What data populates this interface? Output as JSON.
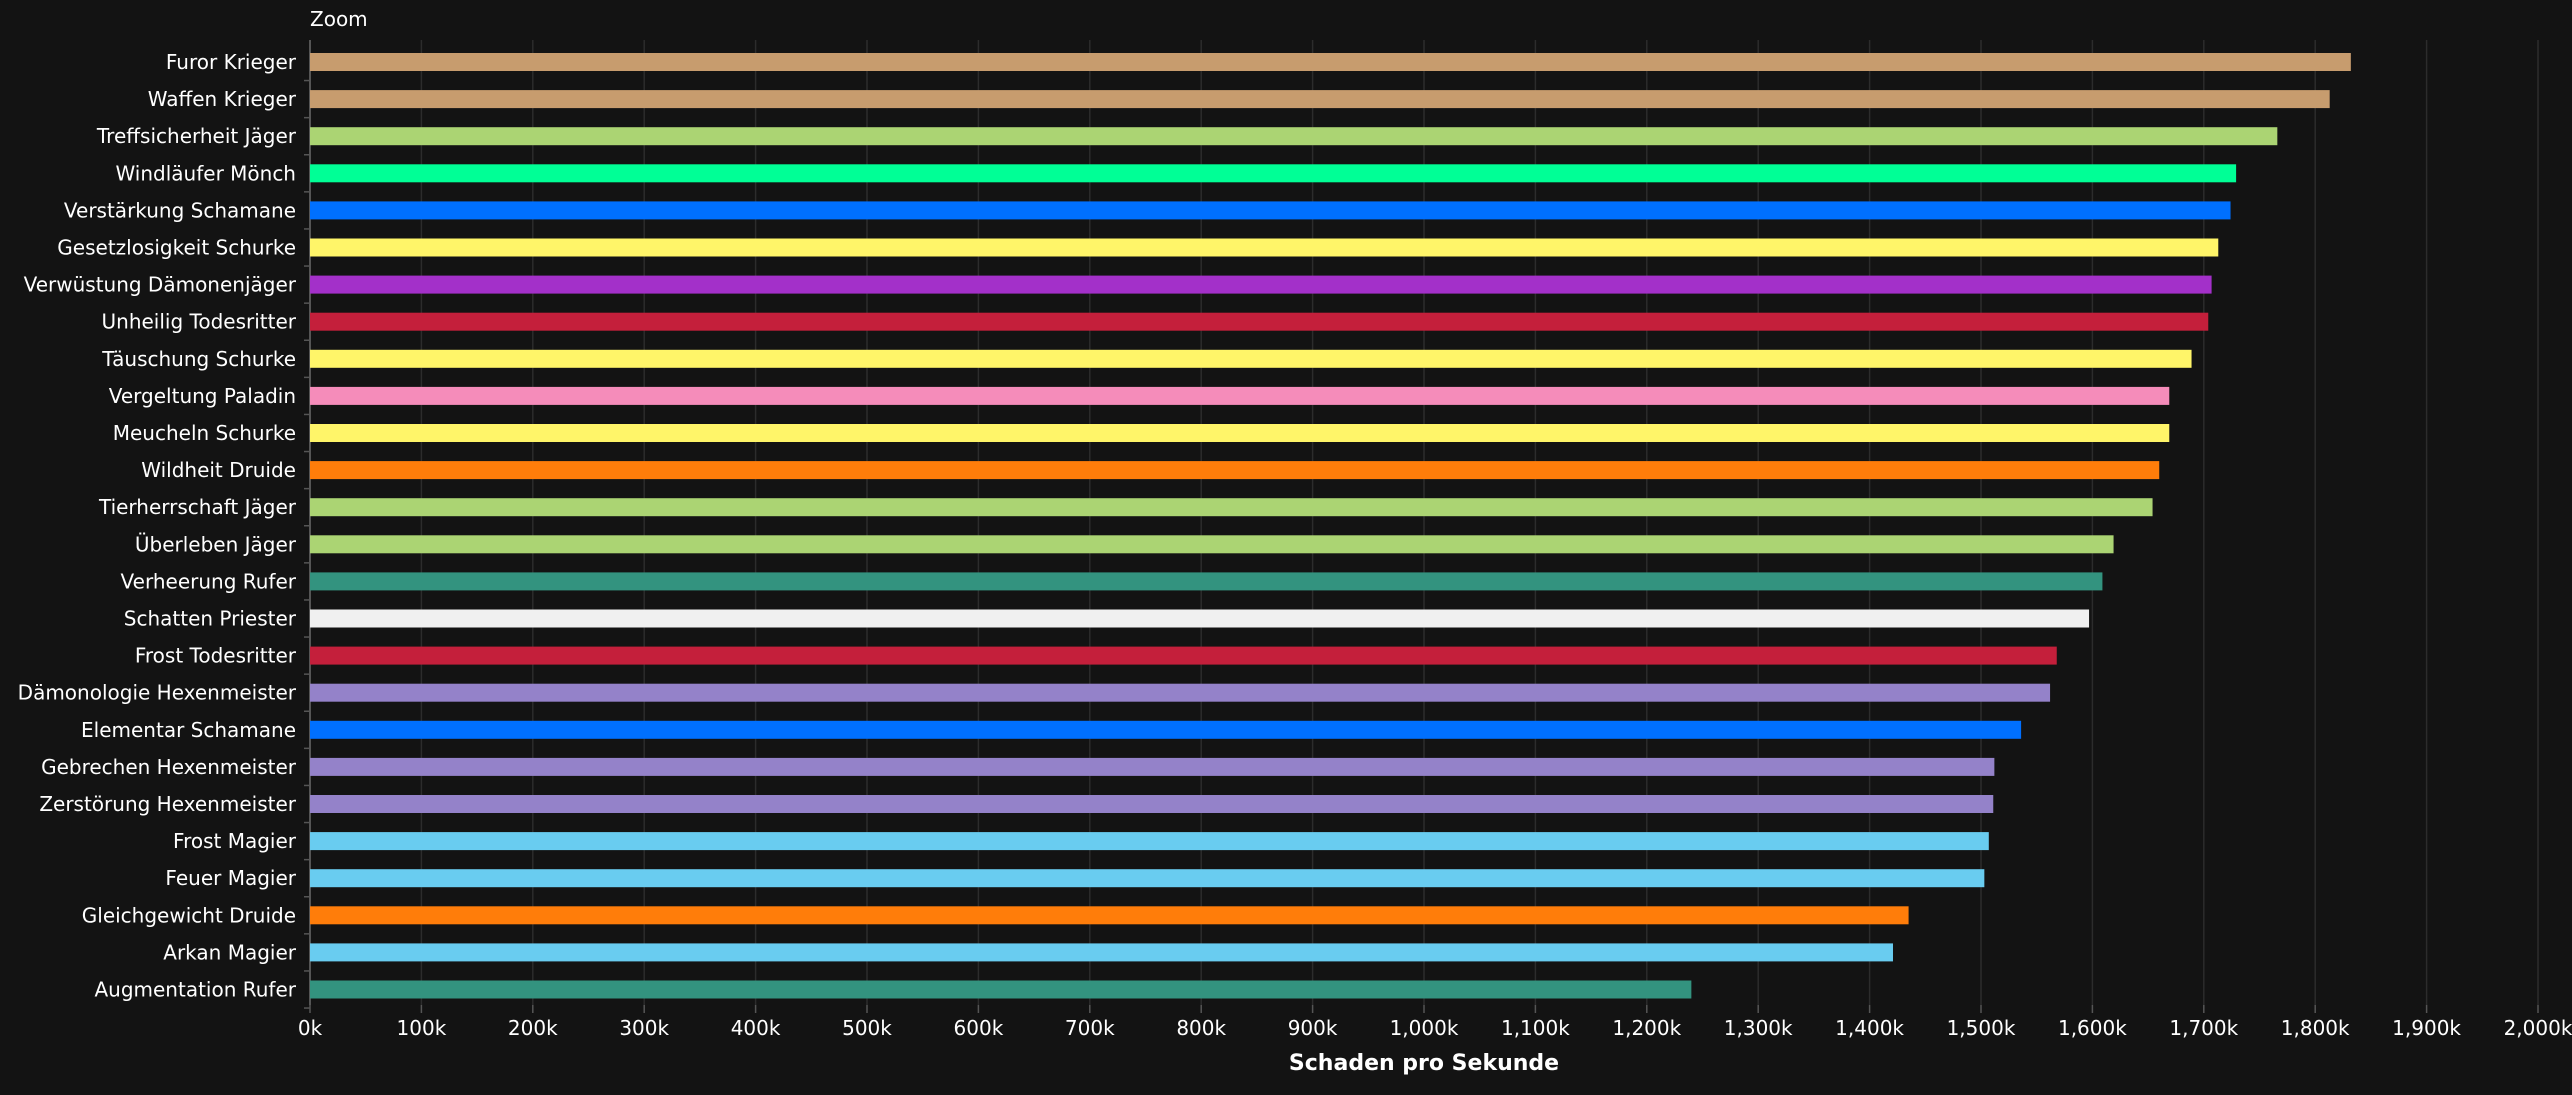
{
  "zoom_label": "Zoom",
  "chart_data": {
    "type": "bar",
    "orientation": "horizontal",
    "title": "",
    "xlabel": "Schaden pro Sekunde",
    "ylabel": "",
    "xlim": [
      0,
      2000000
    ],
    "grid": true,
    "background": "#131313",
    "ticks": [
      "0k",
      "100k",
      "200k",
      "300k",
      "400k",
      "500k",
      "600k",
      "700k",
      "800k",
      "900k",
      "1,000k",
      "1,100k",
      "1,200k",
      "1,300k",
      "1,400k",
      "1,500k",
      "1,600k",
      "1,700k",
      "1,800k",
      "1,900k",
      "2,000k"
    ],
    "categories": [
      "Furor Krieger",
      "Waffen Krieger",
      "Treffsicherheit Jäger",
      "Windläufer Mönch",
      "Verstärkung Schamane",
      "Gesetzlosigkeit Schurke",
      "Verwüstung Dämonenjäger",
      "Unheilig Todesritter",
      "Täuschung Schurke",
      "Vergeltung Paladin",
      "Meucheln Schurke",
      "Wildheit Druide",
      "Tierherrschaft Jäger",
      "Überleben Jäger",
      "Verheerung Rufer",
      "Schatten Priester",
      "Frost Todesritter",
      "Dämonologie Hexenmeister",
      "Elementar Schamane",
      "Gebrechen Hexenmeister",
      "Zerstörung Hexenmeister",
      "Frost Magier",
      "Feuer Magier",
      "Gleichgewicht Druide",
      "Arkan Magier",
      "Augmentation Rufer"
    ],
    "values": [
      1832000,
      1813000,
      1766000,
      1729000,
      1724000,
      1713000,
      1707000,
      1704000,
      1689000,
      1669000,
      1669000,
      1660000,
      1654000,
      1619000,
      1609000,
      1597000,
      1568000,
      1562000,
      1536000,
      1512000,
      1511000,
      1507000,
      1503000,
      1435000,
      1421000,
      1240000
    ],
    "colors": [
      "#C79C6E",
      "#C79C6E",
      "#ABD473",
      "#00FF96",
      "#0070FF",
      "#FFF569",
      "#A330C9",
      "#C41F3B",
      "#FFF569",
      "#F58CBA",
      "#FFF569",
      "#FF7D0A",
      "#ABD473",
      "#ABD473",
      "#33937F",
      "#F0F0F0",
      "#C41F3B",
      "#9482C9",
      "#0070FF",
      "#9482C9",
      "#9482C9",
      "#69CCF0",
      "#69CCF0",
      "#FF7D0A",
      "#69CCF0",
      "#33937F"
    ]
  }
}
